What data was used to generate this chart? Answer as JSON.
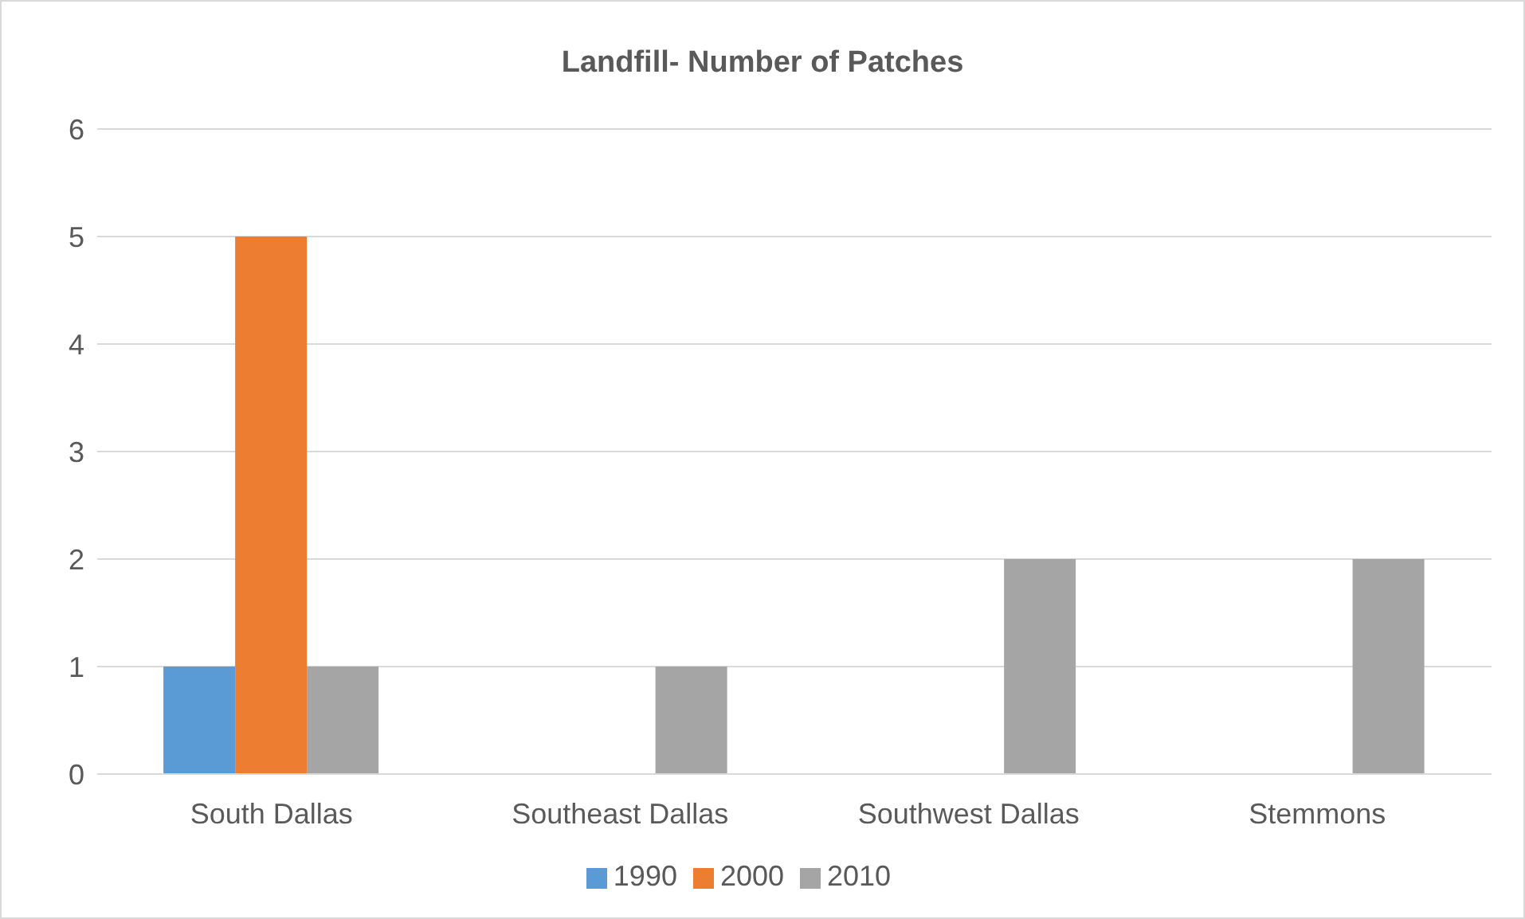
{
  "chart_data": {
    "type": "bar",
    "title": "Landfill- Number of Patches",
    "categories": [
      "South Dallas",
      "Southeast Dallas",
      "Southwest Dallas",
      "Stemmons"
    ],
    "series": [
      {
        "name": "1990",
        "color": "#5b9bd5",
        "values": [
          1,
          0,
          0,
          0
        ]
      },
      {
        "name": "2000",
        "color": "#ed7d31",
        "values": [
          5,
          0,
          0,
          0
        ]
      },
      {
        "name": "2010",
        "color": "#a5a5a5",
        "values": [
          1,
          1,
          2,
          2
        ]
      }
    ],
    "ylim": [
      0,
      6
    ],
    "yticks": [
      0,
      1,
      2,
      3,
      4,
      5,
      6
    ],
    "grid": "y",
    "legend": "bottom"
  }
}
